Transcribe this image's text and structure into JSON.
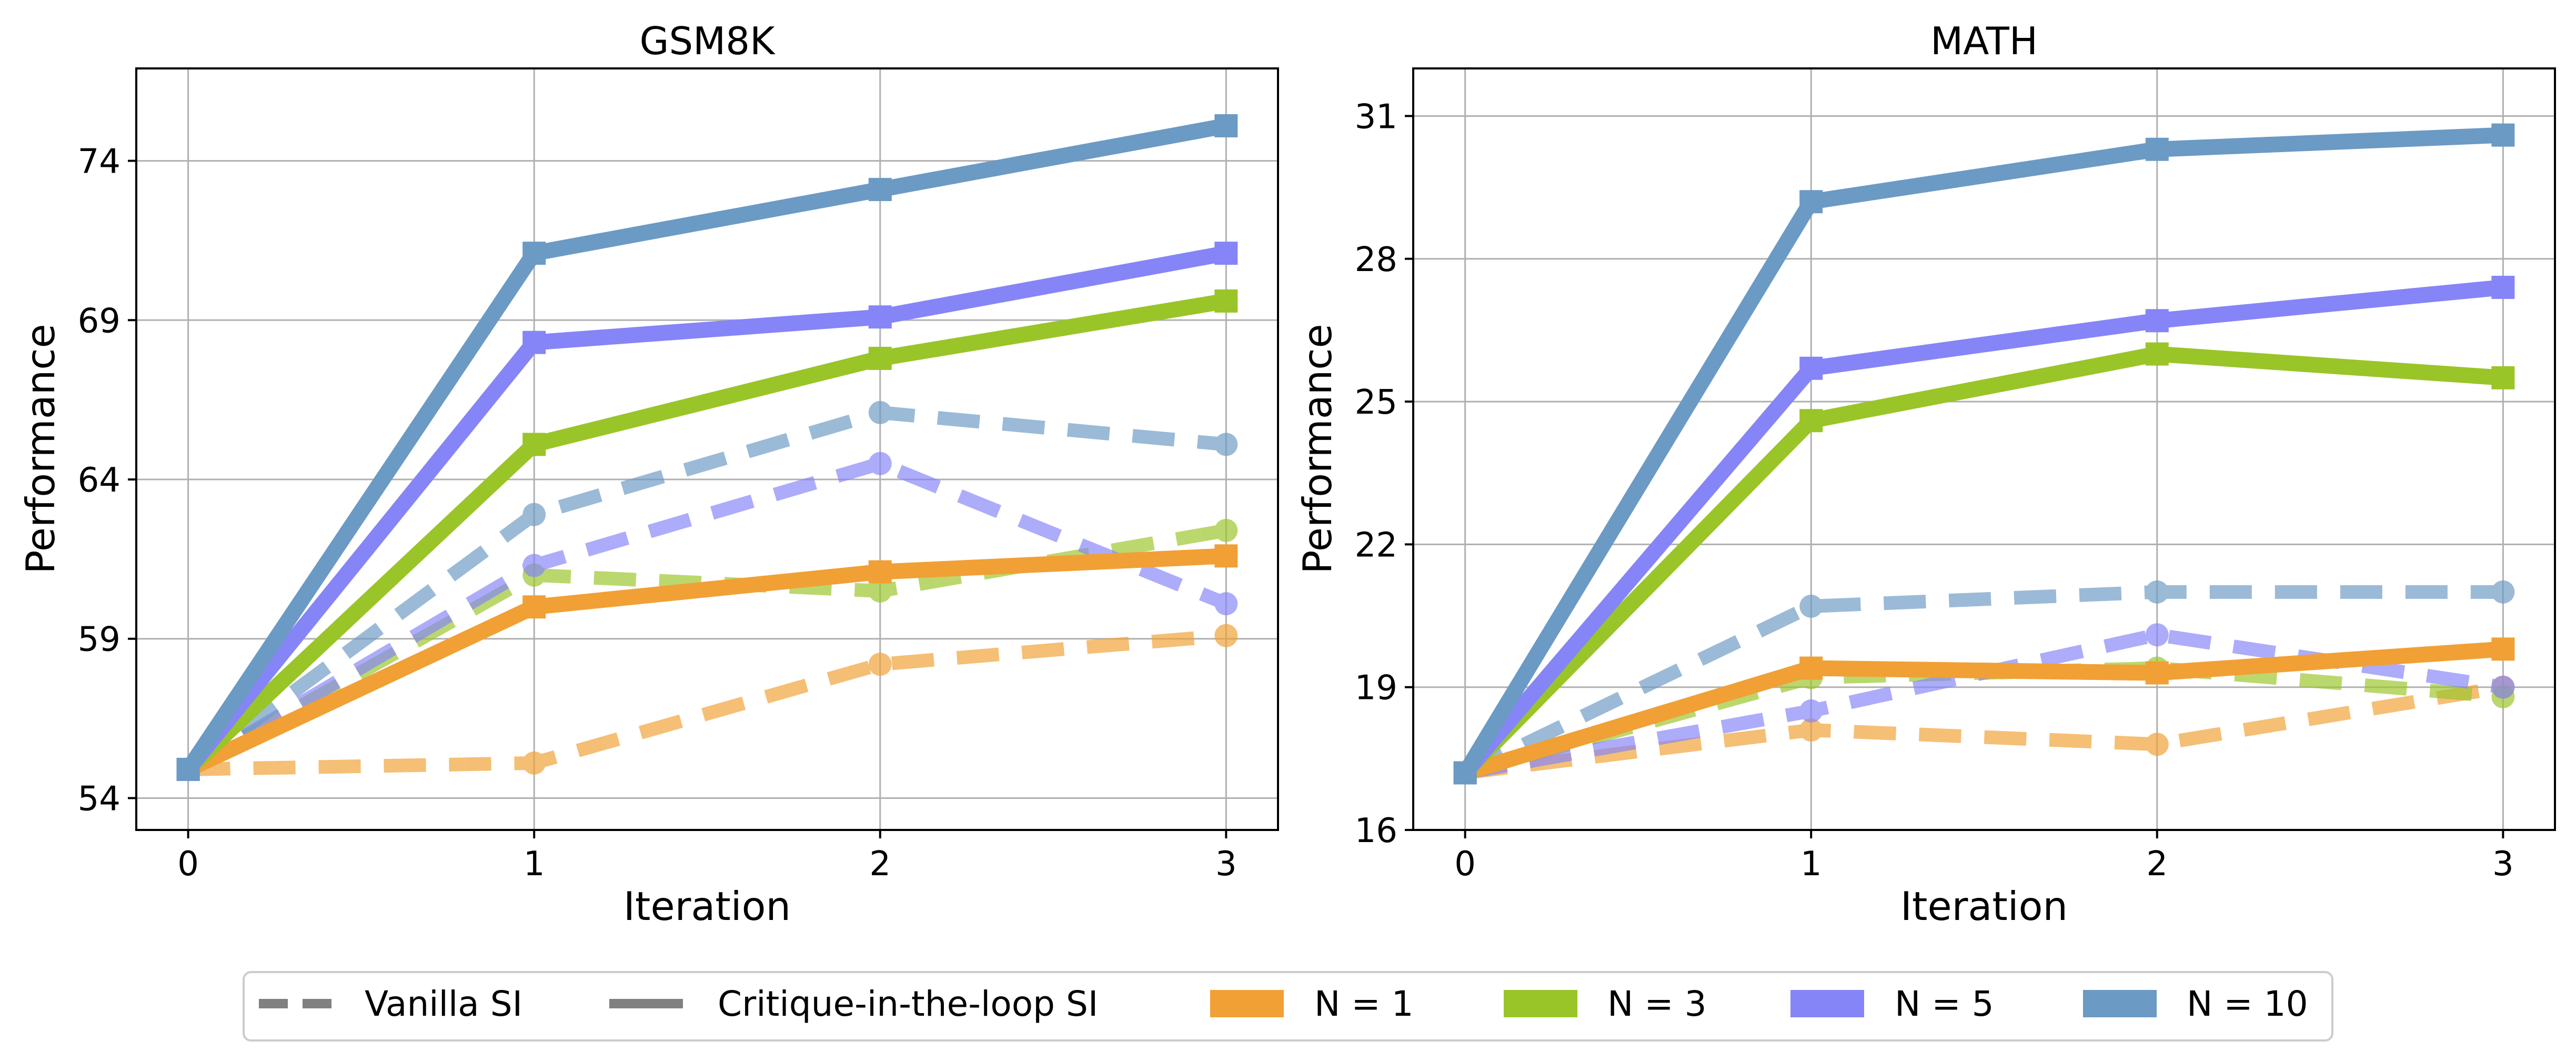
{
  "chart_data": [
    {
      "type": "line",
      "title": "GSM8K",
      "xlabel": "Iteration",
      "ylabel": "Performance",
      "x": [
        0,
        1,
        2,
        3
      ],
      "xticks": [
        "0",
        "1",
        "2",
        "3"
      ],
      "yticks": [
        "54",
        "59",
        "64",
        "69",
        "74"
      ],
      "xlim": [
        -0.15,
        3.15
      ],
      "ylim": [
        53.0,
        76.9
      ],
      "grid": true,
      "series": [
        {
          "group": "N = 1",
          "style": "Vanilla SI",
          "values": [
            54.9,
            55.1,
            58.2,
            59.1
          ]
        },
        {
          "group": "N = 3",
          "style": "Vanilla SI",
          "values": [
            54.9,
            61.0,
            60.5,
            62.4
          ]
        },
        {
          "group": "N = 5",
          "style": "Vanilla SI",
          "values": [
            54.9,
            61.3,
            64.5,
            60.1
          ]
        },
        {
          "group": "N = 10",
          "style": "Vanilla SI",
          "values": [
            54.9,
            62.9,
            66.1,
            65.1
          ]
        },
        {
          "group": "N = 1",
          "style": "Critique-in-the-loop SI",
          "values": [
            54.9,
            60.0,
            61.1,
            61.6
          ]
        },
        {
          "group": "N = 3",
          "style": "Critique-in-the-loop SI",
          "values": [
            54.9,
            65.1,
            67.8,
            69.6
          ]
        },
        {
          "group": "N = 5",
          "style": "Critique-in-the-loop SI",
          "values": [
            54.9,
            68.3,
            69.1,
            71.1
          ]
        },
        {
          "group": "N = 10",
          "style": "Critique-in-the-loop SI",
          "values": [
            54.9,
            71.1,
            73.1,
            75.1
          ]
        }
      ]
    },
    {
      "type": "line",
      "title": "MATH",
      "xlabel": "Iteration",
      "ylabel": "Performance",
      "x": [
        0,
        1,
        2,
        3
      ],
      "xticks": [
        "0",
        "1",
        "2",
        "3"
      ],
      "yticks": [
        "16",
        "19",
        "22",
        "25",
        "28",
        "31"
      ],
      "xlim": [
        -0.15,
        3.15
      ],
      "ylim": [
        16.0,
        32.0
      ],
      "grid": true,
      "series": [
        {
          "group": "N = 1",
          "style": "Vanilla SI",
          "values": [
            17.2,
            18.1,
            17.8,
            19.0
          ]
        },
        {
          "group": "N = 3",
          "style": "Vanilla SI",
          "values": [
            17.2,
            19.2,
            19.4,
            18.8
          ]
        },
        {
          "group": "N = 5",
          "style": "Vanilla SI",
          "values": [
            17.2,
            18.5,
            20.1,
            19.0
          ]
        },
        {
          "group": "N = 10",
          "style": "Vanilla SI",
          "values": [
            17.2,
            20.7,
            21.0,
            21.0
          ]
        },
        {
          "group": "N = 1",
          "style": "Critique-in-the-loop SI",
          "values": [
            17.2,
            19.4,
            19.3,
            19.8
          ]
        },
        {
          "group": "N = 3",
          "style": "Critique-in-the-loop SI",
          "values": [
            17.2,
            24.6,
            26.0,
            25.5
          ]
        },
        {
          "group": "N = 5",
          "style": "Critique-in-the-loop SI",
          "values": [
            17.2,
            25.7,
            26.7,
            27.4
          ]
        },
        {
          "group": "N = 10",
          "style": "Critique-in-the-loop SI",
          "values": [
            17.2,
            29.2,
            30.3,
            30.6
          ]
        }
      ]
    }
  ],
  "legend": {
    "placement": "bottom-center",
    "styles": [
      {
        "label": "Vanilla SI",
        "linestyle": "dashed",
        "color": "#808080"
      },
      {
        "label": "Critique-in-the-loop SI",
        "linestyle": "solid",
        "color": "#808080"
      }
    ],
    "groups": [
      {
        "label": "N = 1",
        "color": "#F0A035"
      },
      {
        "label": "N = 3",
        "color": "#9AC529"
      },
      {
        "label": "N = 5",
        "color": "#8585F8"
      },
      {
        "label": "N = 10",
        "color": "#6B9AC4"
      }
    ]
  }
}
